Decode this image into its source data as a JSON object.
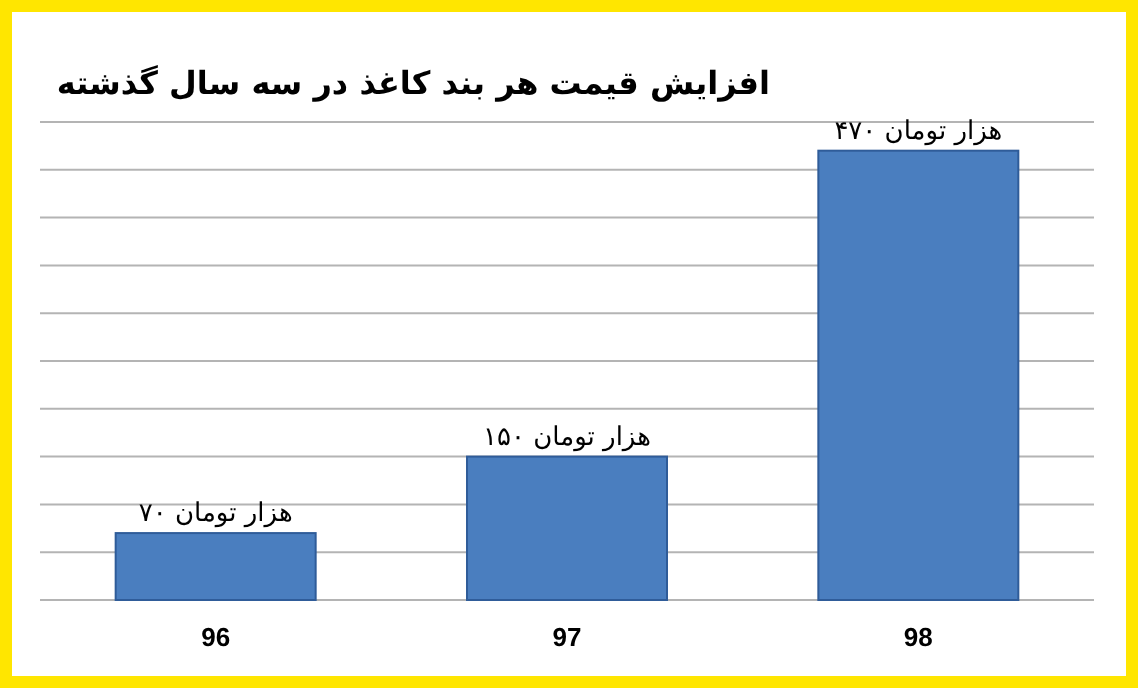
{
  "chart_data": {
    "type": "bar",
    "title": "افزایش قیمت هر بند کاغذ در سه سال گذشته",
    "categories": [
      "96",
      "97",
      "98"
    ],
    "values": [
      70,
      150,
      470
    ],
    "value_labels": [
      "۷۰ هزار تومان",
      "۱۵۰ هزار تومان",
      "۴۷۰ هزار تومان"
    ],
    "color": "#4a7ebf",
    "ylim": [
      0,
      500
    ],
    "yticks": [
      {
        "value": 0,
        "label": null
      },
      {
        "value": 50,
        "label": null
      },
      {
        "value": 100,
        "label": null
      },
      {
        "value": 150,
        "label": null
      },
      {
        "value": 200,
        "label": null
      },
      {
        "value": 250,
        "label": null
      },
      {
        "value": 300,
        "label": null
      },
      {
        "value": 350,
        "label": null
      },
      {
        "value": 400,
        "label": null
      },
      {
        "value": 450,
        "label": null
      },
      {
        "value": 500,
        "label": null
      }
    ],
    "grid": "y",
    "tick_labels": "x"
  }
}
